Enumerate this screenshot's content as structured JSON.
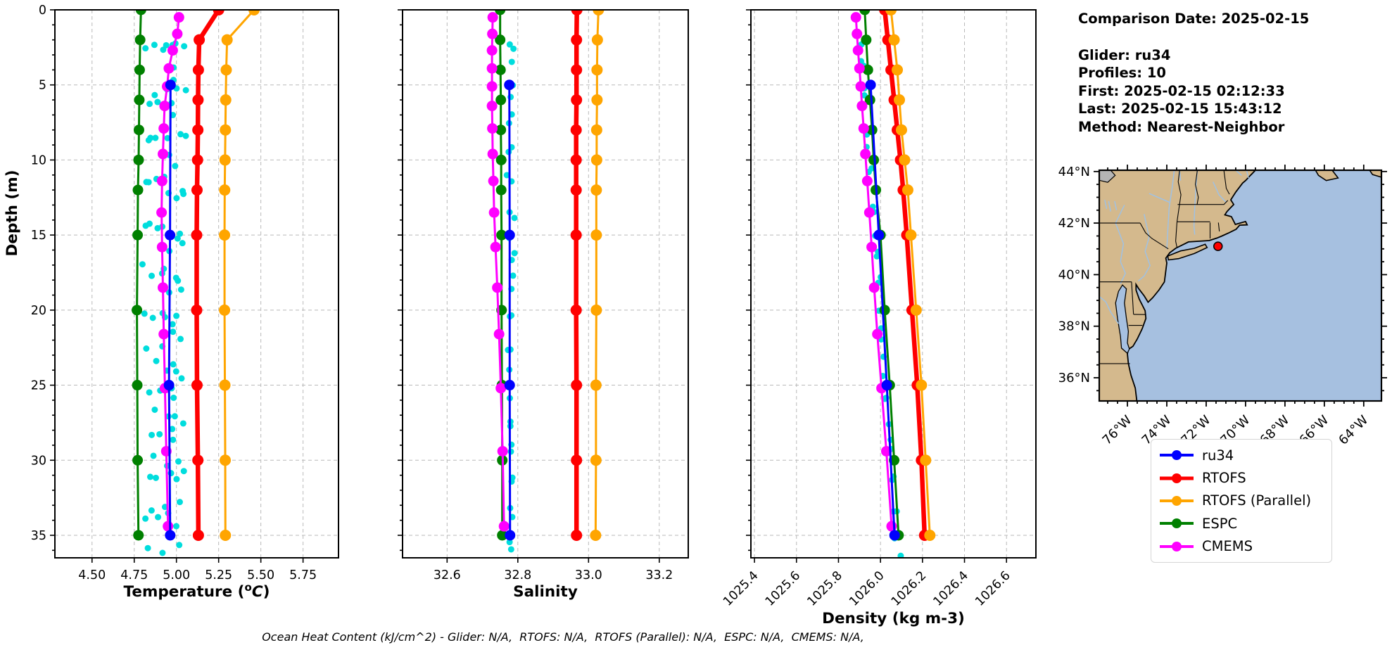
{
  "info": {
    "title": "Comparison Date: 2025-02-15",
    "lines": [
      "Glider: ru34",
      "Profiles: 10",
      "First: 2025-02-15 02:12:33",
      "Last: 2025-02-15 15:43:12",
      "Method: Nearest-Neighbor"
    ]
  },
  "caption": "Ocean Heat Content (kJ/cm^2) - Glider: N/A,  RTOFS: N/A,  RTOFS (Parallel): N/A,  ESPC: N/A,  CMEMS: N/A,",
  "legend": {
    "entries": [
      {
        "label": "ru34",
        "color": "#0000ff"
      },
      {
        "label": "RTOFS",
        "color": "#ff0000"
      },
      {
        "label": "RTOFS (Parallel)",
        "color": "#ffa500"
      },
      {
        "label": "ESPC",
        "color": "#008000"
      },
      {
        "label": "CMEMS",
        "color": "#ff00ff"
      }
    ]
  },
  "chart_data": [
    {
      "type": "line",
      "panel": "temperature",
      "xlabel": "Temperature (oC)",
      "xlabel_parts": [
        "Temperature (",
        "o",
        "C",
        ")"
      ],
      "ylabel": "Depth (m)",
      "xlim": [
        4.28,
        5.96
      ],
      "ylim": [
        0,
        36.5
      ],
      "xticks": [
        "4.50",
        "4.75",
        "5.00",
        "5.25",
        "5.50",
        "5.75"
      ],
      "xtick_vals": [
        4.5,
        4.75,
        5.0,
        5.25,
        5.5,
        5.75
      ],
      "yticks": [
        0,
        5,
        10,
        15,
        20,
        25,
        30,
        35
      ],
      "grid": true,
      "rotate_xticks": false,
      "series": [
        {
          "name": "RTOFS",
          "color": "#ff0000",
          "lw": 6.5,
          "ms": 8,
          "depths": [
            0,
            2,
            4,
            6,
            8,
            10,
            12,
            15,
            20,
            25,
            30,
            35
          ],
          "values": [
            5.25,
            5.135,
            5.13,
            5.128,
            5.127,
            5.125,
            5.122,
            5.12,
            5.12,
            5.122,
            5.127,
            5.13
          ]
        },
        {
          "name": "RTOFS (Parallel)",
          "color": "#ffa500",
          "lw": 3,
          "ms": 8,
          "depths": [
            0,
            2,
            4,
            6,
            8,
            10,
            12,
            15,
            20,
            25,
            30,
            35
          ],
          "values": [
            5.46,
            5.3,
            5.295,
            5.292,
            5.29,
            5.288,
            5.286,
            5.285,
            5.285,
            5.287,
            5.289,
            5.29
          ]
        },
        {
          "name": "ESPC",
          "color": "#008000",
          "lw": 3,
          "ms": 7.5,
          "depths": [
            0,
            2,
            4,
            6,
            8,
            10,
            12,
            15,
            20,
            25,
            30,
            35
          ],
          "values": [
            4.79,
            4.785,
            4.782,
            4.78,
            4.778,
            4.776,
            4.772,
            4.77,
            4.766,
            4.768,
            4.77,
            4.775
          ]
        },
        {
          "name": "CMEMS",
          "color": "#ff00ff",
          "lw": 3,
          "ms": 7.5,
          "depths": [
            0.5,
            1.6,
            2.7,
            3.9,
            5.1,
            6.4,
            7.9,
            9.6,
            11.4,
            13.5,
            15.8,
            18.5,
            21.6,
            25.2,
            29.4,
            34.4
          ],
          "values": [
            5.015,
            5.005,
            4.978,
            4.955,
            4.945,
            4.93,
            4.925,
            4.92,
            4.915,
            4.912,
            4.915,
            4.92,
            4.925,
            4.932,
            4.94,
            4.95
          ]
        },
        {
          "name": "ru34",
          "color": "#0000ff",
          "lw": 3,
          "ms": 7.5,
          "depths": [
            5,
            15,
            25,
            35
          ],
          "values": [
            4.965,
            4.962,
            4.956,
            4.963
          ]
        }
      ],
      "glider_scatter": {
        "name": "glider raw observations",
        "color": "#00dddd",
        "r": 4.5,
        "streaks": [
          {
            "x0": 4.82,
            "x1": 4.828,
            "d0": 3,
            "d1": 37,
            "n": 13,
            "wiggle": 0.018,
            "jitter": 0.02,
            "phase": 0.3
          },
          {
            "x0": 4.852,
            "x1": 4.858,
            "d0": 2.4,
            "d1": 36,
            "n": 12,
            "wiggle": 0.02,
            "jitter": 0.018,
            "phase": 1.6
          },
          {
            "x0": 4.9,
            "x1": 4.905,
            "d0": 3,
            "d1": 37,
            "n": 13,
            "wiggle": 0.02,
            "jitter": 0.02,
            "phase": 2.5
          },
          {
            "x0": 4.935,
            "x1": 4.93,
            "d0": 2,
            "d1": 36.5,
            "n": 12,
            "wiggle": 0.018,
            "jitter": 0.02,
            "phase": 0.9
          },
          {
            "x0": 4.962,
            "x1": 4.966,
            "d0": 3.5,
            "d1": 37,
            "n": 12,
            "wiggle": 0.016,
            "jitter": 0.018,
            "phase": 2.1
          },
          {
            "x0": 4.99,
            "x1": 4.99,
            "d0": 2,
            "d1": 37,
            "n": 14,
            "wiggle": 0.016,
            "jitter": 0.02,
            "phase": 4.0
          },
          {
            "x0": 5.012,
            "x1": 5.008,
            "d0": 2.5,
            "d1": 36,
            "n": 12,
            "wiggle": 0.018,
            "jitter": 0.02,
            "phase": 5.1
          },
          {
            "x0": 5.04,
            "x1": 5.034,
            "d0": 2.5,
            "d1": 31,
            "n": 10,
            "wiggle": 0.016,
            "jitter": 0.018,
            "phase": 0.0
          }
        ]
      }
    },
    {
      "type": "line",
      "panel": "salinity",
      "xlabel": "Salinity",
      "xlim": [
        32.474,
        33.282
      ],
      "ylim": [
        0,
        36.5
      ],
      "xticks": [
        "32.6",
        "32.8",
        "33.0",
        "33.2"
      ],
      "xtick_vals": [
        32.6,
        32.8,
        33.0,
        33.2
      ],
      "yticks": [
        0,
        5,
        10,
        15,
        20,
        25,
        30,
        35
      ],
      "grid": true,
      "rotate_xticks": false,
      "series": [
        {
          "name": "RTOFS",
          "color": "#ff0000",
          "lw": 6.5,
          "ms": 8,
          "depths": [
            0,
            2,
            4,
            6,
            8,
            10,
            12,
            15,
            20,
            25,
            30,
            35
          ],
          "values": [
            32.967,
            32.966,
            32.966,
            32.966,
            32.965,
            32.965,
            32.965,
            32.965,
            32.965,
            32.966,
            32.966,
            32.966
          ]
        },
        {
          "name": "RTOFS (Parallel)",
          "color": "#ffa500",
          "lw": 3,
          "ms": 8,
          "depths": [
            0,
            2,
            4,
            6,
            8,
            10,
            12,
            15,
            20,
            25,
            30,
            35
          ],
          "values": [
            33.028,
            33.025,
            33.024,
            33.024,
            33.023,
            33.023,
            33.022,
            33.022,
            33.022,
            33.021,
            33.021,
            33.02
          ]
        },
        {
          "name": "ESPC",
          "color": "#008000",
          "lw": 3,
          "ms": 7.5,
          "depths": [
            0,
            2,
            4,
            6,
            8,
            10,
            12,
            15,
            20,
            25,
            30,
            35
          ],
          "values": [
            32.75,
            32.75,
            32.751,
            32.752,
            32.752,
            32.753,
            32.753,
            32.754,
            32.754,
            32.755,
            32.756,
            32.756
          ]
        },
        {
          "name": "CMEMS",
          "color": "#ff00ff",
          "lw": 3,
          "ms": 7.5,
          "depths": [
            0.5,
            1.6,
            2.7,
            3.9,
            5.1,
            6.4,
            7.9,
            9.6,
            11.4,
            13.5,
            15.8,
            18.5,
            21.6,
            25.2,
            29.4,
            34.4
          ],
          "values": [
            32.729,
            32.728,
            32.727,
            32.727,
            32.727,
            32.727,
            32.728,
            32.729,
            32.731,
            32.733,
            32.737,
            32.742,
            32.747,
            32.752,
            32.757,
            32.761
          ]
        },
        {
          "name": "ru34",
          "color": "#0000ff",
          "lw": 3,
          "ms": 7.5,
          "depths": [
            5,
            15,
            25,
            35
          ],
          "values": [
            32.776,
            32.777,
            32.777,
            32.778
          ]
        }
      ],
      "glider_scatter": {
        "name": "glider raw observations",
        "color": "#00dddd",
        "r": 4.5,
        "streaks": [
          {
            "x0": 32.776,
            "x1": 32.779,
            "d0": 2,
            "d1": 37,
            "n": 20,
            "wiggle": 0.005,
            "jitter": 0.006,
            "phase": 0.7
          },
          {
            "x0": 32.786,
            "x1": 32.781,
            "d0": 2.5,
            "d1": 36,
            "n": 16,
            "wiggle": 0.005,
            "jitter": 0.006,
            "phase": 2.9
          }
        ]
      }
    },
    {
      "type": "line",
      "panel": "density",
      "xlabel": "Density (kg m-3)",
      "xlim": [
        1025.383,
        1026.74
      ],
      "ylim": [
        0,
        36.5
      ],
      "xticks": [
        "1025.4",
        "1025.6",
        "1025.8",
        "1026.0",
        "1026.2",
        "1026.4",
        "1026.6"
      ],
      "xtick_vals": [
        1025.4,
        1025.6,
        1025.8,
        1026.0,
        1026.2,
        1026.4,
        1026.6
      ],
      "yticks": [
        0,
        5,
        10,
        15,
        20,
        25,
        30,
        35
      ],
      "grid": true,
      "rotate_xticks": true,
      "series": [
        {
          "name": "RTOFS",
          "color": "#ff0000",
          "lw": 6.5,
          "ms": 8,
          "depths": [
            0,
            2,
            4,
            6,
            8,
            10,
            12,
            15,
            20,
            25,
            30,
            35
          ],
          "values": [
            1026.02,
            1026.035,
            1026.05,
            1026.065,
            1026.08,
            1026.095,
            1026.108,
            1026.125,
            1026.15,
            1026.175,
            1026.195,
            1026.21
          ]
        },
        {
          "name": "RTOFS (Parallel)",
          "color": "#ffa500",
          "lw": 3,
          "ms": 8,
          "depths": [
            0,
            2,
            4,
            6,
            8,
            10,
            12,
            15,
            20,
            25,
            30,
            35
          ],
          "values": [
            1026.05,
            1026.065,
            1026.08,
            1026.09,
            1026.1,
            1026.115,
            1026.13,
            1026.145,
            1026.17,
            1026.195,
            1026.215,
            1026.235
          ]
        },
        {
          "name": "ESPC",
          "color": "#008000",
          "lw": 3,
          "ms": 7.5,
          "depths": [
            0,
            2,
            4,
            6,
            8,
            10,
            12,
            15,
            20,
            25,
            30,
            35
          ],
          "values": [
            1025.925,
            1025.932,
            1025.94,
            1025.95,
            1025.96,
            1025.968,
            1025.978,
            1026.0,
            1026.02,
            1026.044,
            1026.065,
            1026.086
          ]
        },
        {
          "name": "CMEMS",
          "color": "#ff00ff",
          "lw": 3,
          "ms": 7.5,
          "depths": [
            0.5,
            1.6,
            2.7,
            3.9,
            5.1,
            6.4,
            7.9,
            9.6,
            11.4,
            13.5,
            15.8,
            18.5,
            21.6,
            25.2,
            29.4,
            34.4
          ],
          "values": [
            1025.883,
            1025.888,
            1025.893,
            1025.9,
            1025.906,
            1025.912,
            1025.92,
            1025.928,
            1025.937,
            1025.947,
            1025.958,
            1025.97,
            1025.985,
            1026.005,
            1026.028,
            1026.053
          ]
        },
        {
          "name": "ru34",
          "color": "#0000ff",
          "lw": 3,
          "ms": 7.5,
          "depths": [
            5,
            15,
            25,
            35
          ],
          "values": [
            1025.953,
            1025.992,
            1026.03,
            1026.067
          ]
        }
      ],
      "glider_scatter": {
        "name": "glider raw observations",
        "color": "#00dddd",
        "r": 4.5,
        "streaks": [
          {
            "x0": 1025.905,
            "x1": 1026.08,
            "d0": 2,
            "d1": 37,
            "n": 20,
            "wiggle": 0.006,
            "jitter": 0.008,
            "phase": 1.2
          },
          {
            "x0": 1025.915,
            "x1": 1026.088,
            "d0": 3,
            "d1": 36,
            "n": 14,
            "wiggle": 0.006,
            "jitter": 0.008,
            "phase": 3.8
          }
        ]
      }
    },
    {
      "type": "map",
      "panel": "glider-location",
      "lat_ticks": [
        "44°N",
        "42°N",
        "40°N",
        "38°N",
        "36°N"
      ],
      "lat_vals": [
        44,
        42,
        40,
        38,
        36
      ],
      "lon_ticks": [
        "76°W",
        "74°W",
        "72°W",
        "70°W",
        "68°W",
        "66°W",
        "64°W"
      ],
      "lon_vals": [
        -76,
        -74,
        -72,
        -70,
        -68,
        -66,
        -64
      ],
      "extent": {
        "lon": [
          -77.43,
          -63.1
        ],
        "lat": [
          35.1,
          44.05
        ]
      },
      "marker": {
        "lon": -71.4,
        "lat": 41.1,
        "color": "#ff0000"
      },
      "land_color": "#d4b98d",
      "ocean_color": "#a6c0e0",
      "river_color": "#9dc2e8",
      "lake_color": "#b5b5b5"
    }
  ]
}
